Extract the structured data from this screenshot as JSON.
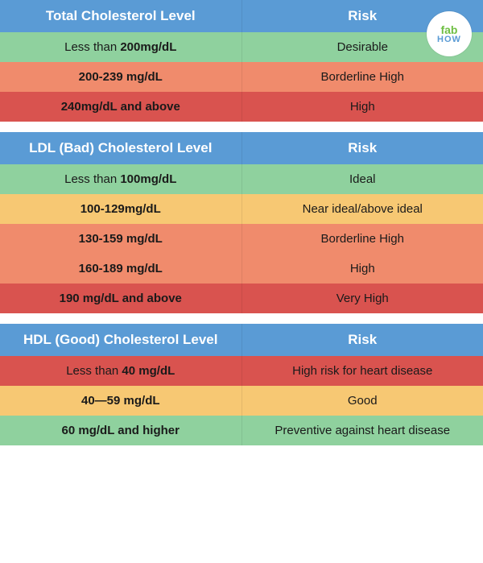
{
  "colors": {
    "header": "#5a9bd5",
    "green": "#8fd19e",
    "yellow": "#f7c873",
    "orange": "#f08b6c",
    "red": "#d9534f",
    "text_dark": "#1a1a1a",
    "text_white": "#ffffff"
  },
  "logo": {
    "fab": "fab",
    "how": "HOW"
  },
  "tables": [
    {
      "header_left": "Total Cholesterol Level",
      "header_right": "Risk",
      "rows": [
        {
          "level_pre": "Less than ",
          "level_bold": "200mg/dL",
          "level_post": "",
          "risk": "Desirable",
          "color": "green"
        },
        {
          "level_pre": "",
          "level_bold": "200-239 mg/dL",
          "level_post": "",
          "risk": "Borderline High",
          "color": "orange"
        },
        {
          "level_pre": "",
          "level_bold": "240mg/dL and above",
          "level_post": "",
          "risk": "High",
          "color": "red"
        }
      ]
    },
    {
      "header_left": "LDL (Bad) Cholesterol Level",
      "header_right": "Risk",
      "rows": [
        {
          "level_pre": "Less than ",
          "level_bold": "100mg/dL",
          "level_post": "",
          "risk": "Ideal",
          "color": "green"
        },
        {
          "level_pre": "",
          "level_bold": "100-129mg/dL",
          "level_post": "",
          "risk": "Near ideal/above ideal",
          "color": "yellow"
        },
        {
          "level_pre": "",
          "level_bold": "130-159 mg/dL",
          "level_post": "",
          "risk": "Borderline High",
          "color": "orange"
        },
        {
          "level_pre": "",
          "level_bold": "160-189 mg/dL",
          "level_post": "",
          "risk": "High",
          "color": "orange"
        },
        {
          "level_pre": "",
          "level_bold": "190 mg/dL and above",
          "level_post": "",
          "risk": "Very High",
          "color": "red"
        }
      ]
    },
    {
      "header_left": "HDL (Good) Cholesterol Level",
      "header_right": "Risk",
      "rows": [
        {
          "level_pre": "Less than ",
          "level_bold": "40 mg/dL",
          "level_post": "",
          "risk": "High risk for heart disease",
          "color": "red"
        },
        {
          "level_pre": "",
          "level_bold": "40—59 mg/dL",
          "level_post": "",
          "risk": "Good",
          "color": "yellow"
        },
        {
          "level_pre": "",
          "level_bold": "60 mg/dL and higher",
          "level_post": "",
          "risk": "Preventive against heart disease",
          "color": "green"
        }
      ]
    }
  ]
}
